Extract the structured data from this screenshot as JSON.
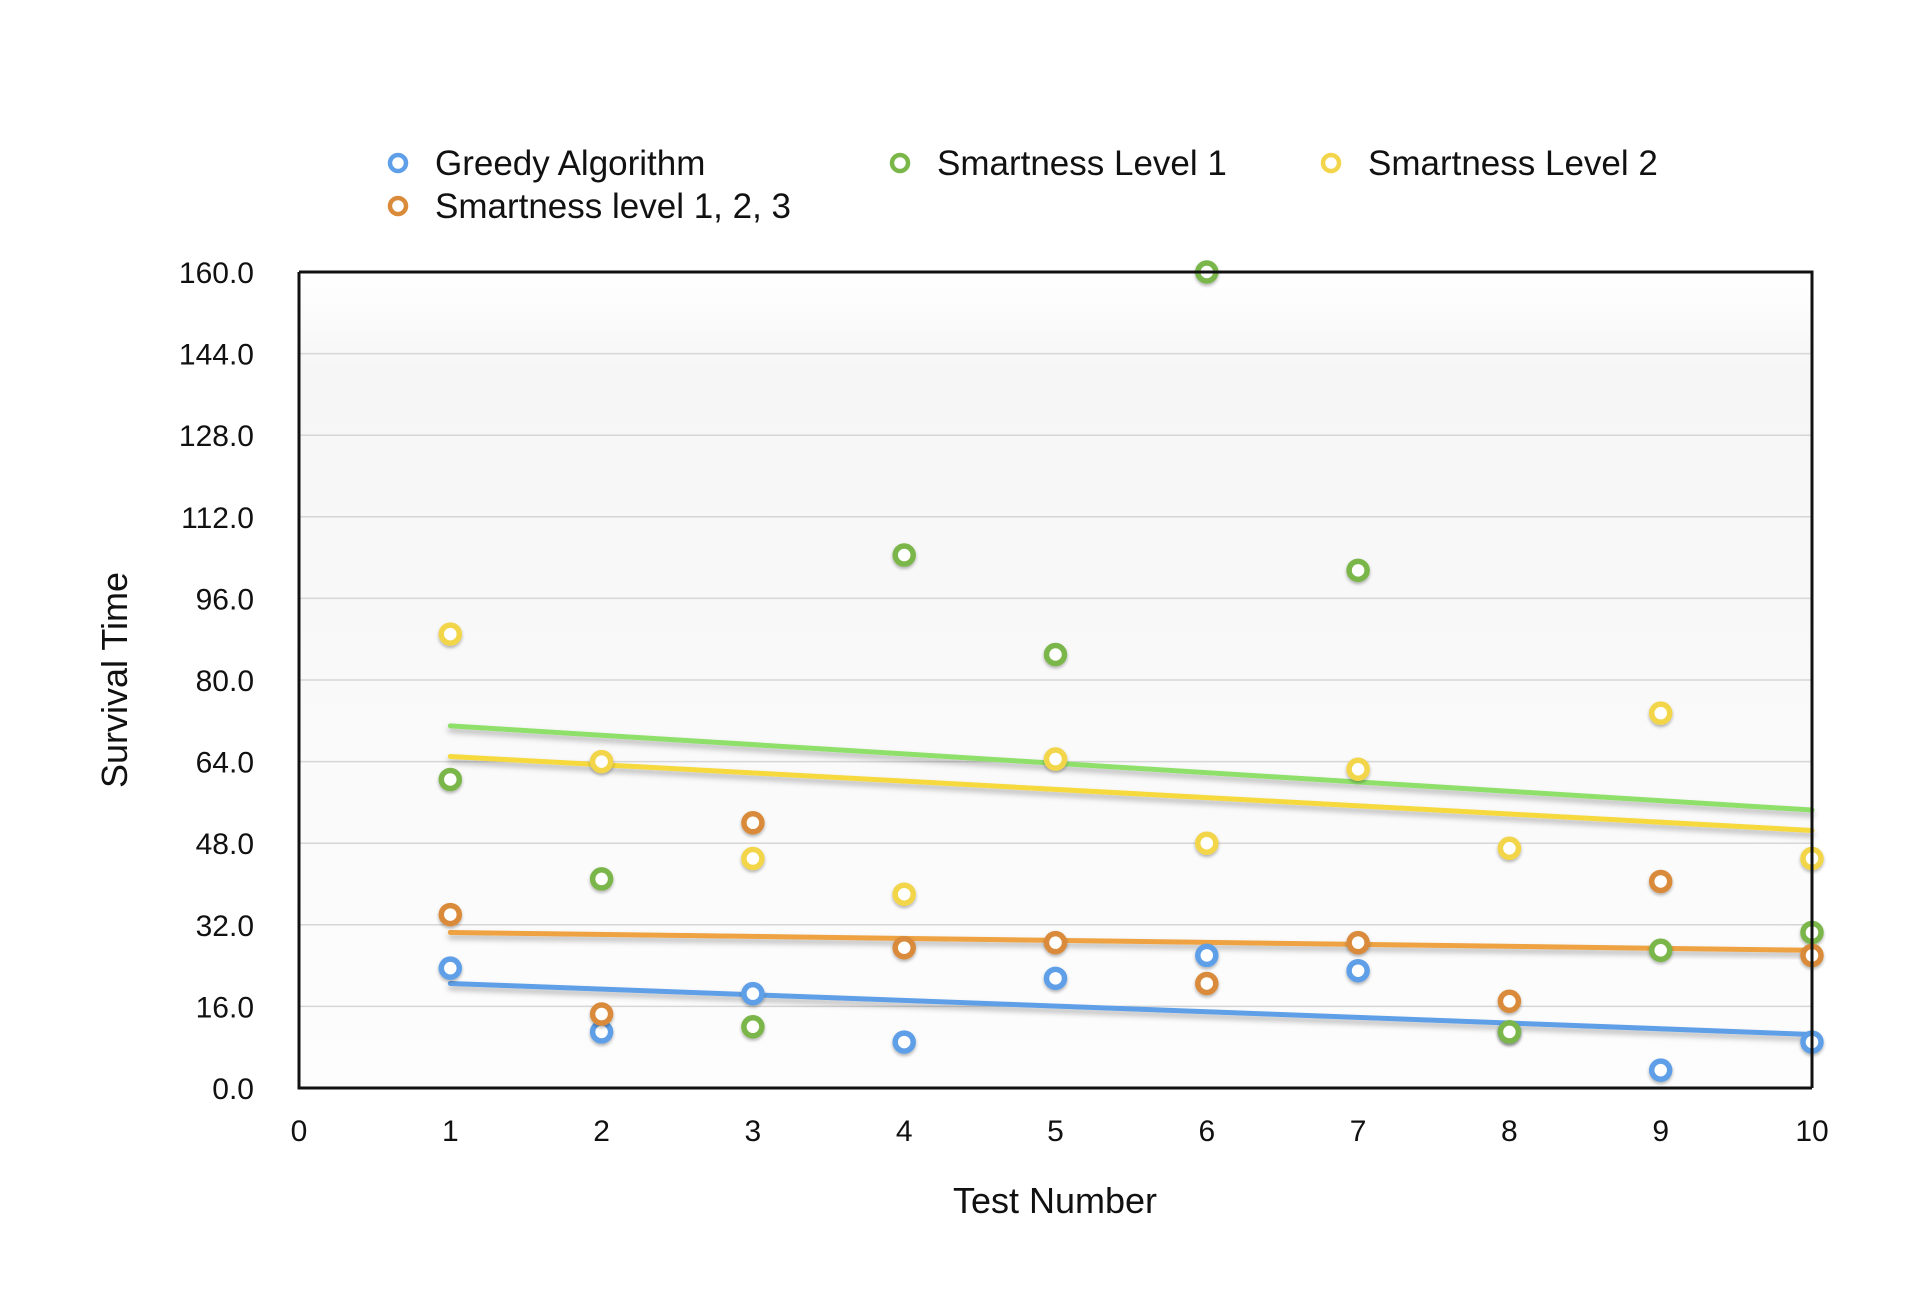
{
  "chart_data": {
    "type": "scatter",
    "title": "",
    "xlabel": "Test Number",
    "ylabel": "Survival Time",
    "xlim": [
      0,
      10
    ],
    "ylim": [
      0,
      160
    ],
    "x_ticks": [
      "0",
      "1",
      "2",
      "3",
      "4",
      "5",
      "6",
      "7",
      "8",
      "9",
      "10"
    ],
    "y_ticks": [
      "0.0",
      "16.0",
      "32.0",
      "48.0",
      "64.0",
      "80.0",
      "96.0",
      "112.0",
      "128.0",
      "144.0",
      "160.0"
    ],
    "grid": true,
    "legend": "top",
    "trendlines": true,
    "series": [
      {
        "name": "Greedy Algorithm",
        "color": "#5e9fe8",
        "trend_color": "#5e9fe8",
        "x": [
          1,
          2,
          3,
          4,
          5,
          6,
          7,
          8,
          9,
          10
        ],
        "y": [
          23.5,
          11,
          18.5,
          9,
          21.5,
          26,
          23,
          11,
          3.5,
          9
        ],
        "trend": [
          20.5,
          10.5
        ]
      },
      {
        "name": "Smartness Level 1",
        "color": "#7ab648",
        "trend_color": "#8fe06a",
        "x": [
          1,
          2,
          3,
          4,
          5,
          6,
          7,
          8,
          9,
          10
        ],
        "y": [
          60.5,
          41,
          12,
          104.5,
          85,
          160,
          101.5,
          11,
          27,
          30.5
        ],
        "trend": [
          71,
          54.5
        ]
      },
      {
        "name": "Smartness Level 2",
        "color": "#f2d54a",
        "trend_color": "#f5d93e",
        "x": [
          1,
          2,
          3,
          4,
          5,
          6,
          7,
          8,
          9,
          10
        ],
        "y": [
          89,
          64,
          45,
          38,
          64.5,
          48,
          62.5,
          47,
          73.5,
          45
        ],
        "trend": [
          65,
          50.5
        ]
      },
      {
        "name": "Smartness level 1, 2, 3",
        "color": "#d98b3a",
        "trend_color": "#eea243",
        "x": [
          1,
          2,
          3,
          4,
          5,
          6,
          7,
          8,
          9,
          10
        ],
        "y": [
          34,
          14.5,
          52,
          27.5,
          28.5,
          20.5,
          28.5,
          17,
          40.5,
          26
        ],
        "trend": [
          30.5,
          27
        ]
      }
    ]
  }
}
